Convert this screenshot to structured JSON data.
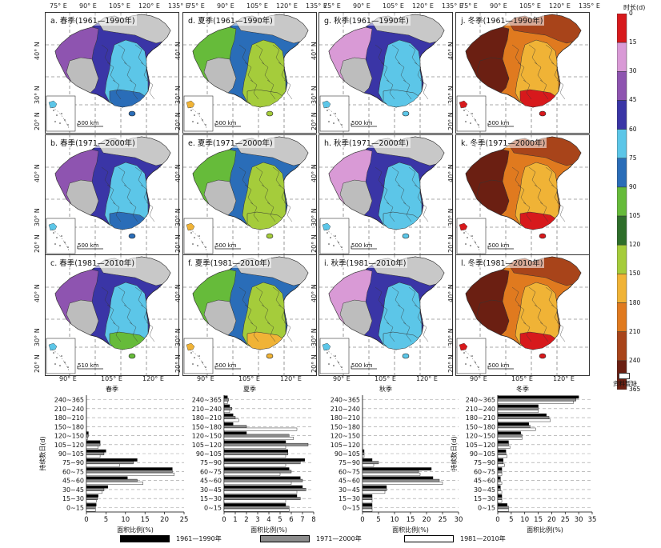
{
  "maps": {
    "panels": [
      {
        "label": "a. 春季(1961—1990年)",
        "season": "spring",
        "period": 0
      },
      {
        "label": "d. 夏季(1961—1990年)",
        "season": "summer",
        "period": 0
      },
      {
        "label": "g. 秋季(1961—1990年)",
        "season": "autumn",
        "period": 0
      },
      {
        "label": "j. 冬季(1961—1990年)",
        "season": "winter",
        "period": 0
      },
      {
        "label": "b. 春季(1971—2000年)",
        "season": "spring",
        "period": 1
      },
      {
        "label": "e. 夏季(1971—2000年)",
        "season": "summer",
        "period": 1
      },
      {
        "label": "h. 秋季(1971—2000年)",
        "season": "autumn",
        "period": 1
      },
      {
        "label": "k. 冬季(1971—2000年)",
        "season": "winter",
        "period": 1
      },
      {
        "label": "c. 春季(1981—2010年)",
        "season": "spring",
        "period": 2
      },
      {
        "label": "f. 夏季(1981—2010年)",
        "season": "summer",
        "period": 2
      },
      {
        "label": "i. 秋季(1981—2010年)",
        "season": "autumn",
        "period": 2
      },
      {
        "label": "l. 冬季(1981—2010年)",
        "season": "winter",
        "period": 2
      }
    ],
    "top_lon_labels": [
      "75° E",
      "90° E",
      "105° E",
      "120° E",
      "135° E"
    ],
    "bottom_lon_labels": [
      "90° E",
      "105° E",
      "120° E"
    ],
    "lat_labels": [
      "40° N",
      "30° N",
      "20° N"
    ],
    "scalebar": "500 km",
    "scalebar_alt": "510 km",
    "season_names": [
      "春季",
      "夏季",
      "秋季",
      "冬季"
    ]
  },
  "legend": {
    "title": "时长(d)",
    "ticks": [
      "0",
      "15",
      "30",
      "45",
      "60",
      "75",
      "90",
      "105",
      "120",
      "150",
      "180",
      "210",
      "240",
      "365"
    ],
    "colors": [
      "#d7191c",
      "#d99ad6",
      "#8e54b0",
      "#3a35a6",
      "#5cc6e8",
      "#2a6db8",
      "#66bb3a",
      "#2e6e2a",
      "#a5cc3b",
      "#f0b336",
      "#e07a1f",
      "#a8441a",
      "#6b1f12"
    ],
    "no_data_label": "资料暂缺"
  },
  "chart_data": [
    {
      "type": "bar",
      "orientation": "horizontal",
      "title": "",
      "xlabel": "面积比例(%)",
      "ylabel": "持续数日(d)",
      "xlim": [
        0,
        25
      ],
      "xticks": [
        0,
        5,
        10,
        15,
        20,
        25
      ],
      "categories": [
        "0~15",
        "15~30",
        "30~45",
        "45~60",
        "60~75",
        "75~90",
        "90~105",
        "105~120",
        "120~150",
        "150~180",
        "180~210",
        "210~240",
        "240~365"
      ],
      "season_label": "春季",
      "series": [
        {
          "name": "1961—1990年",
          "values": [
            2.5,
            3.0,
            5.5,
            10.5,
            22.0,
            13.0,
            5.0,
            3.5,
            0.5,
            0,
            0,
            0,
            0
          ]
        },
        {
          "name": "1971—2000年",
          "values": [
            2.3,
            2.8,
            4.5,
            13.0,
            22.0,
            12.0,
            4.5,
            3.5,
            0.5,
            0,
            0,
            0,
            0
          ]
        },
        {
          "name": "1981—2010年",
          "values": [
            2.3,
            2.5,
            4.0,
            14.5,
            22.5,
            8.5,
            3.5,
            3.0,
            0.3,
            0,
            0,
            0,
            0
          ]
        }
      ]
    },
    {
      "type": "bar",
      "orientation": "horizontal",
      "title": "",
      "xlabel": "面积比例(%)",
      "ylabel": "",
      "xlim": [
        0,
        8
      ],
      "xticks": [
        0,
        1,
        2,
        3,
        4,
        5,
        6,
        7,
        8
      ],
      "categories": [
        "0~15",
        "15~30",
        "30~45",
        "45~60",
        "60~75",
        "75~90",
        "90~105",
        "105~120",
        "120~150",
        "150~180",
        "180~210",
        "210~240",
        "240~365"
      ],
      "season_label": "夏季",
      "series": [
        {
          "name": "1961—1990年",
          "values": [
            5.5,
            6.5,
            7.0,
            6.8,
            5.8,
            7.2,
            5.7,
            5.5,
            2.0,
            0.8,
            0.8,
            0.5,
            0.3
          ]
        },
        {
          "name": "1971—2000年",
          "values": [
            5.8,
            6.8,
            7.3,
            7.0,
            6.0,
            6.8,
            5.7,
            7.5,
            5.8,
            2.0,
            1.0,
            0.7,
            0.4
          ]
        },
        {
          "name": "1981—2010年",
          "values": [
            5.8,
            5.5,
            6.5,
            6.0,
            5.0,
            5.5,
            5.5,
            5.5,
            6.2,
            6.5,
            1.3,
            0.5,
            0.3
          ]
        }
      ]
    },
    {
      "type": "bar",
      "orientation": "horizontal",
      "title": "",
      "xlabel": "面积比例(%)",
      "ylabel": "",
      "xlim": [
        0,
        30
      ],
      "xticks": [
        0,
        5,
        10,
        15,
        20,
        25,
        30
      ],
      "categories": [
        "0~15",
        "15~30",
        "30~45",
        "45~60",
        "60~75",
        "75~90",
        "90~105",
        "105~120",
        "120~150",
        "150~180",
        "180~210",
        "210~240",
        "240~365"
      ],
      "season_label": "秋季",
      "series": [
        {
          "name": "1961—1990年",
          "values": [
            3.0,
            3.0,
            7.5,
            22.0,
            21.5,
            3.0,
            0.5,
            0,
            0,
            0,
            0,
            0,
            0
          ]
        },
        {
          "name": "1971—2000年",
          "values": [
            3.0,
            3.0,
            7.5,
            24.0,
            17.5,
            5.0,
            0.5,
            0,
            0,
            0,
            0,
            0,
            0
          ]
        },
        {
          "name": "1981—2010年",
          "values": [
            3.0,
            3.0,
            7.0,
            25.0,
            18.0,
            3.5,
            0.5,
            0,
            0,
            0,
            0,
            0,
            0
          ]
        }
      ]
    },
    {
      "type": "bar",
      "orientation": "horizontal",
      "title": "",
      "xlabel": "面积比例(%)",
      "ylabel": "持续数日(d)",
      "xlim": [
        0,
        35
      ],
      "xticks": [
        0,
        5,
        10,
        15,
        20,
        25,
        30,
        35
      ],
      "categories": [
        "0~15",
        "15~30",
        "30~45",
        "45~60",
        "60~75",
        "75~90",
        "90~105",
        "105~120",
        "120~150",
        "150~180",
        "180~210",
        "210~240",
        "240~365"
      ],
      "season_label": "冬季",
      "series": [
        {
          "name": "1961—1990年",
          "values": [
            3.5,
            1.5,
            1.0,
            1.0,
            1.5,
            2.0,
            3.0,
            4.0,
            8.5,
            11.5,
            18.0,
            15.0,
            30.0
          ]
        },
        {
          "name": "1971—2000年",
          "values": [
            4.0,
            1.5,
            1.0,
            1.0,
            1.5,
            2.0,
            3.0,
            4.0,
            9.0,
            12.0,
            19.0,
            15.0,
            29.0
          ]
        },
        {
          "name": "1981—2010年",
          "values": [
            4.0,
            1.5,
            1.5,
            1.5,
            1.5,
            2.5,
            3.5,
            4.5,
            9.0,
            14.0,
            19.5,
            15.0,
            28.0
          ]
        }
      ]
    }
  ],
  "series_legend": [
    {
      "name": "1961—1990年",
      "color": "#000000"
    },
    {
      "name": "1971—2000年",
      "color": "#8c8c8c"
    },
    {
      "name": "1981—2010年",
      "color": "#ffffff"
    }
  ]
}
